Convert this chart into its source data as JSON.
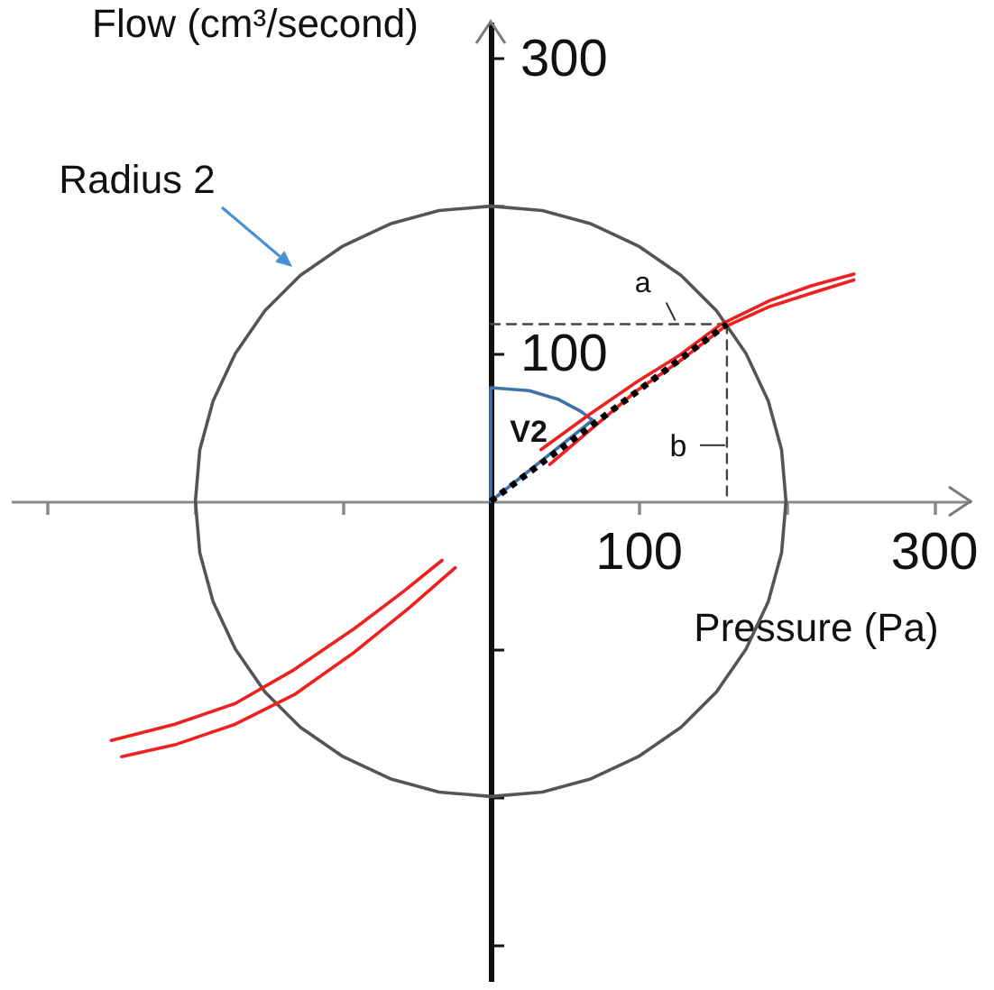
{
  "chart_data": {
    "type": "line",
    "xlabel": "Pressure (Pa)",
    "ylabel": "Flow (cm³/second)",
    "xlim": [
      -325,
      325
    ],
    "ylim": [
      -325,
      325
    ],
    "xticks": [
      {
        "value": -300,
        "label": null
      },
      {
        "value": -200,
        "label": null
      },
      {
        "value": -100,
        "label": null
      },
      100,
      {
        "value": 200,
        "label": null
      },
      300
    ],
    "yticks": [
      {
        "value": -300,
        "label": null
      },
      {
        "value": -200,
        "label": null
      },
      {
        "value": -100,
        "label": null
      },
      100,
      {
        "value": 200,
        "label": null
      },
      300
    ],
    "series": [
      {
        "color": "#555555",
        "line_style": "solid",
        "x": [
          200,
          197,
          188,
          173,
          153,
          129,
          100,
          68,
          35,
          0,
          -35,
          -68,
          -100,
          -129,
          -153,
          -173,
          -188,
          -197,
          -200
        ],
        "values": [
          0,
          35,
          68,
          100,
          129,
          153,
          173,
          188,
          197,
          200,
          197,
          188,
          173,
          153,
          129,
          100,
          68,
          35,
          0
        ]
      },
      {
        "color": "#555555",
        "line_style": "solid",
        "x": [
          -200,
          -197,
          -188,
          -173,
          -153,
          -129,
          -100,
          -68,
          -35,
          0,
          35,
          68,
          100,
          129,
          153,
          173,
          188,
          197,
          200
        ],
        "values": [
          0,
          -35,
          -68,
          -100,
          -129,
          -153,
          -173,
          -188,
          -197,
          -200,
          -197,
          -188,
          -173,
          -153,
          -129,
          -100,
          -68,
          -35,
          0
        ]
      },
      {
        "color": "#444444",
        "line_style": "dashed",
        "x": [
          0,
          160
        ],
        "values": [
          120,
          120
        ]
      },
      {
        "color": "#444444",
        "line_style": "dashed",
        "x": [
          160,
          160
        ],
        "values": [
          120,
          0
        ]
      },
      {
        "color": "#3f72a8",
        "line_style": "solid",
        "x": [
          0,
          0,
          26,
          46,
          61,
          69
        ],
        "values": [
          0,
          77,
          75,
          69,
          61,
          55
        ]
      },
      {
        "color": "#3f72a8",
        "line_style": "solid",
        "x": [
          69,
          0
        ],
        "values": [
          55,
          0
        ]
      },
      {
        "color": "#ee2020",
        "line_style": "solid",
        "x": [
          34,
          67,
          99,
          128,
          156,
          189,
          217,
          246
        ],
        "values": [
          35,
          59,
          81,
          99,
          120,
          136,
          146,
          154
        ]
      },
      {
        "color": "#ee2020",
        "line_style": "solid",
        "x": [
          40,
          67,
          99,
          128,
          158,
          189,
          217,
          246
        ],
        "values": [
          25,
          48,
          75,
          95,
          118,
          132,
          141,
          150
        ]
      },
      {
        "color": "#ee2020",
        "line_style": "solid",
        "x": [
          -257,
          -214,
          -173,
          -133,
          -92,
          -59,
          -33
        ],
        "values": [
          -162,
          -151,
          -137,
          -114,
          -86,
          -61,
          -40
        ]
      },
      {
        "color": "#ee2020",
        "line_style": "solid",
        "x": [
          -250,
          -214,
          -173,
          -133,
          -92,
          -55,
          -24
        ],
        "values": [
          -173,
          -165,
          -151,
          -131,
          -102,
          -72,
          -45
        ]
      },
      {
        "color": "#000000",
        "line_style": "dotted",
        "x": [
          0,
          160
        ],
        "values": [
          0,
          120
        ]
      }
    ],
    "annotations": [
      "Radius 2",
      {
        "text": "a",
        "x": 125,
        "y": 120
      },
      {
        "text": "b",
        "x": 160,
        "y": 38
      },
      "V2"
    ]
  }
}
